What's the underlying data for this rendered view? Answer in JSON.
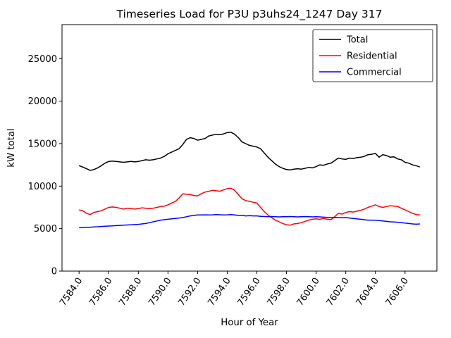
{
  "window": {
    "background": "#ffffff"
  },
  "chart_data": {
    "type": "line",
    "title": "Timeseries Load for P3U p3uhs24_1247  Day 317",
    "xlabel": "Hour of Year",
    "ylabel": "kW total",
    "grid": false,
    "legend_position": "upper right",
    "axis_color": "#000000",
    "x_start": 7584.0,
    "x_step": 0.25,
    "xlim": [
      7582.85,
      7608.15
    ],
    "ylim": [
      0,
      29000
    ],
    "x_tick_values": [
      7584,
      7586,
      7588,
      7590,
      7592,
      7594,
      7596,
      7598,
      7600,
      7602,
      7604,
      7606
    ],
    "x_tick_labels": [
      "7584.0",
      "7586.0",
      "7588.0",
      "7590.0",
      "7592.0",
      "7594.0",
      "7596.0",
      "7598.0",
      "7600.0",
      "7602.0",
      "7604.0",
      "7606.0"
    ],
    "y_tick_values": [
      0,
      5000,
      10000,
      15000,
      20000,
      25000
    ],
    "y_tick_labels": [
      "0",
      "5000",
      "10000",
      "15000",
      "20000",
      "25000"
    ],
    "series": [
      {
        "name": "Total",
        "color": "#000000",
        "values": [
          12400,
          12250,
          12050,
          11850,
          11950,
          12150,
          12400,
          12700,
          12900,
          12950,
          12900,
          12850,
          12800,
          12850,
          12900,
          12850,
          12900,
          13000,
          13100,
          13050,
          13100,
          13200,
          13300,
          13500,
          13800,
          14000,
          14200,
          14400,
          14900,
          15500,
          15700,
          15600,
          15400,
          15500,
          15600,
          15900,
          16000,
          16100,
          16050,
          16150,
          16300,
          16350,
          16100,
          15700,
          15200,
          15000,
          14800,
          14700,
          14600,
          14400,
          13900,
          13400,
          13000,
          12600,
          12300,
          12100,
          11950,
          11900,
          12000,
          12050,
          12000,
          12100,
          12200,
          12150,
          12300,
          12500,
          12450,
          12600,
          12700,
          13000,
          13300,
          13200,
          13150,
          13300,
          13250,
          13350,
          13400,
          13500,
          13700,
          13750,
          13850,
          13400,
          13700,
          13600,
          13400,
          13450,
          13200,
          13100,
          12800,
          12700,
          12500,
          12400,
          12250
        ]
      },
      {
        "name": "Residential",
        "color": "#ff0000",
        "values": [
          7200,
          7100,
          6800,
          6650,
          6900,
          7000,
          7100,
          7300,
          7500,
          7550,
          7500,
          7400,
          7300,
          7400,
          7350,
          7300,
          7350,
          7450,
          7400,
          7350,
          7400,
          7500,
          7600,
          7650,
          7800,
          8000,
          8200,
          8600,
          9100,
          9050,
          9000,
          8900,
          8850,
          9100,
          9300,
          9400,
          9500,
          9450,
          9400,
          9550,
          9700,
          9750,
          9500,
          9000,
          8500,
          8300,
          8200,
          8100,
          8000,
          7500,
          7000,
          6600,
          6300,
          6000,
          5800,
          5600,
          5450,
          5400,
          5550,
          5600,
          5700,
          5850,
          6000,
          6100,
          6150,
          6100,
          6200,
          6100,
          6050,
          6400,
          6800,
          6700,
          6900,
          7000,
          6950,
          7050,
          7150,
          7300,
          7500,
          7650,
          7800,
          7600,
          7500,
          7600,
          7700,
          7650,
          7600,
          7400,
          7200,
          7000,
          6800,
          6650,
          6600
        ]
      },
      {
        "name": "Commercial",
        "color": "#0000ff",
        "values": [
          5100,
          5120,
          5150,
          5150,
          5200,
          5220,
          5250,
          5280,
          5300,
          5320,
          5350,
          5380,
          5400,
          5430,
          5450,
          5480,
          5500,
          5550,
          5600,
          5700,
          5800,
          5900,
          6000,
          6050,
          6100,
          6150,
          6200,
          6250,
          6300,
          6400,
          6500,
          6550,
          6600,
          6600,
          6620,
          6600,
          6620,
          6650,
          6630,
          6600,
          6620,
          6650,
          6600,
          6550,
          6550,
          6500,
          6520,
          6500,
          6500,
          6450,
          6420,
          6400,
          6420,
          6400,
          6380,
          6400,
          6400,
          6420,
          6400,
          6380,
          6400,
          6420,
          6400,
          6380,
          6400,
          6380,
          6350,
          6320,
          6300,
          6320,
          6300,
          6280,
          6300,
          6250,
          6200,
          6150,
          6100,
          6050,
          6000,
          6000,
          5980,
          5950,
          5900,
          5850,
          5800,
          5780,
          5750,
          5700,
          5650,
          5600,
          5550,
          5520,
          5550
        ]
      }
    ]
  }
}
